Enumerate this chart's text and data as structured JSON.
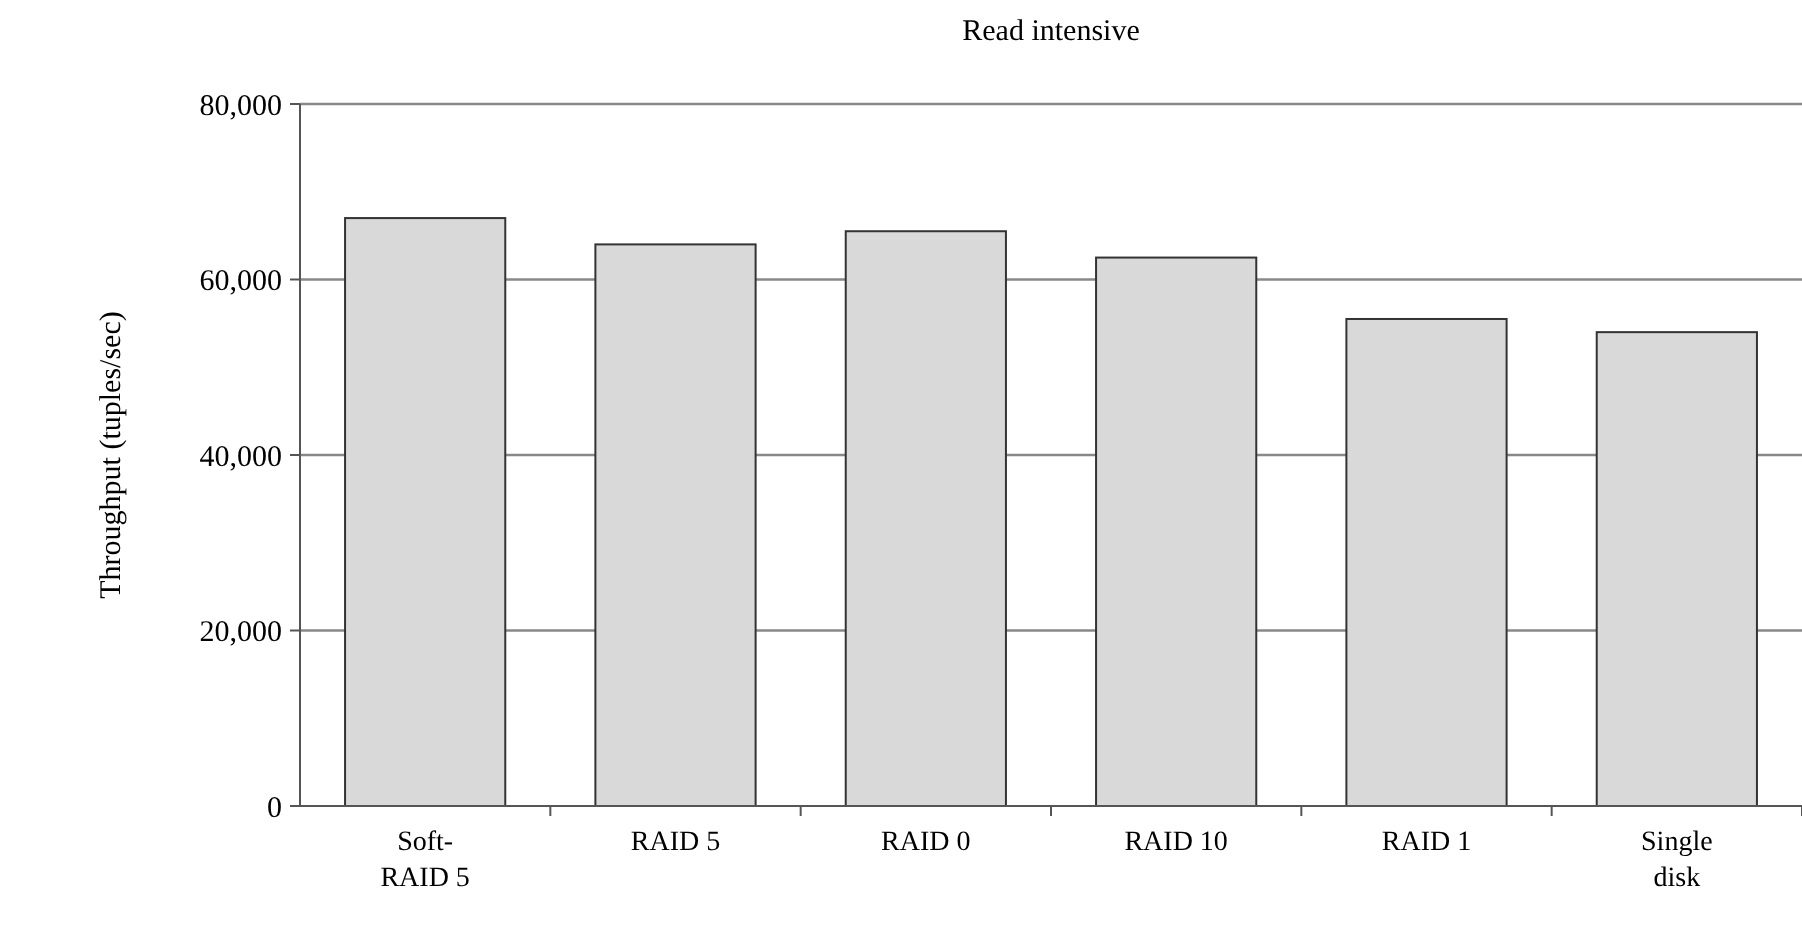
{
  "chart_data": {
    "type": "bar",
    "title": "Read intensive",
    "ylabel": "Throughput (tuples/sec)",
    "categories": [
      "Soft-RAID 5",
      "RAID 5",
      "RAID 0",
      "RAID 10",
      "RAID 1",
      "Single disk"
    ],
    "values": [
      67000,
      64000,
      65500,
      62500,
      55500,
      54000
    ],
    "color": "#d9d9d9",
    "ylim": [
      0,
      80000
    ],
    "yticks": [
      {
        "value": 0,
        "label": "0"
      },
      {
        "value": 20000,
        "label": "20,000"
      },
      {
        "value": 40000,
        "label": "40,000"
      },
      {
        "value": 60000,
        "label": "60,000"
      },
      {
        "value": 80000,
        "label": "80,000"
      }
    ],
    "grid": "y"
  }
}
